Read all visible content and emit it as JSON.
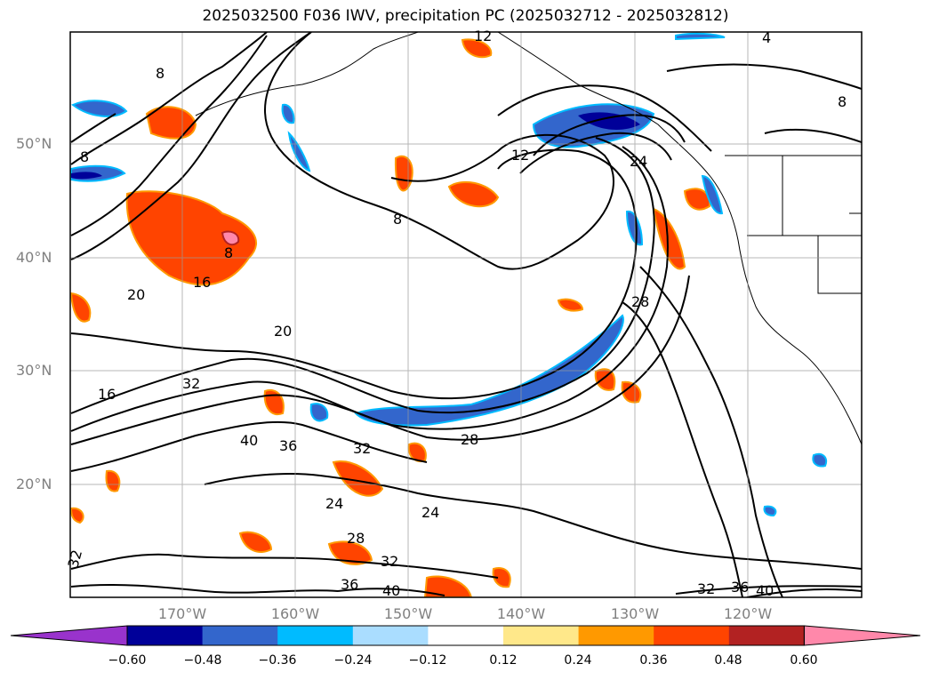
{
  "title": "2025032500 F036 IWV, precipitation PC (2025032712 - 2025032812)",
  "lat_labels": [
    "50°N",
    "40°N",
    "30°N",
    "20°N"
  ],
  "lon_labels": [
    "170°W",
    "160°W",
    "150°W",
    "140°W",
    "130°W",
    "120°W"
  ],
  "colorbar": {
    "ticks": [
      "−0.60",
      "−0.48",
      "−0.36",
      "−0.24",
      "−0.12",
      "0.12",
      "0.24",
      "0.36",
      "0.48",
      "0.60"
    ],
    "colors": [
      "#9933cc",
      "#000099",
      "#3366cc",
      "#00bbff",
      "#aaddff",
      "#ffffff",
      "#ffe88a",
      "#ff9900",
      "#ff4400",
      "#b22222",
      "#ff88aa"
    ]
  },
  "contour_labels": [
    "12",
    "4",
    "8",
    "8",
    "8",
    "12",
    "24",
    "8",
    "16",
    "20",
    "20",
    "28",
    "16",
    "32",
    "40",
    "36",
    "32",
    "28",
    "24",
    "24",
    "28",
    "32",
    "36",
    "40",
    "32",
    "32",
    "36",
    "40",
    "8"
  ],
  "colors": {
    "contour": "#000000",
    "grid": "#999999",
    "coast": "#000000"
  }
}
